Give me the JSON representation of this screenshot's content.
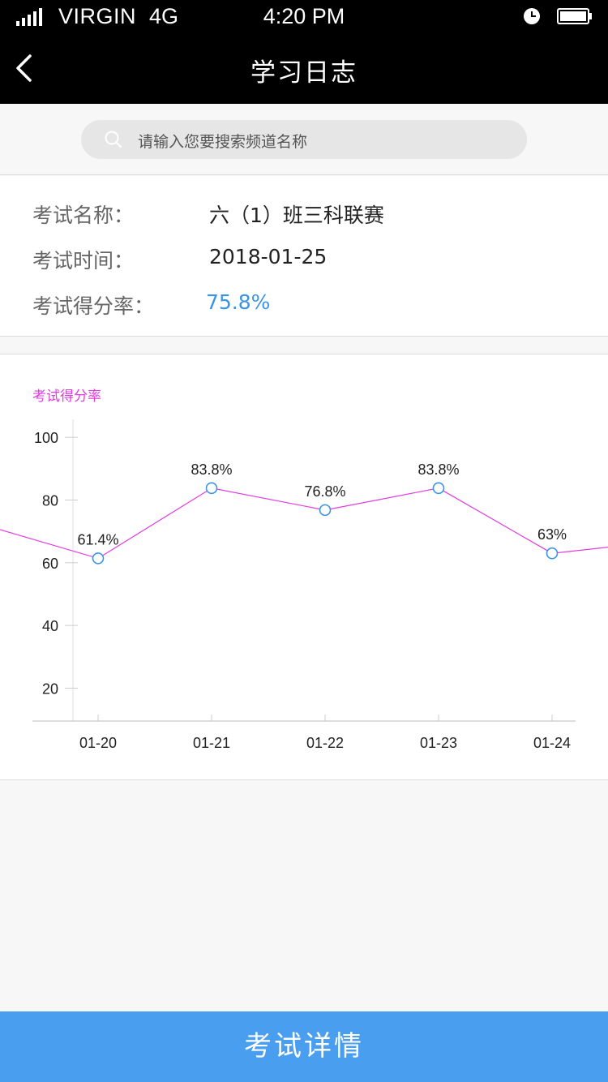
{
  "status_bar": {
    "carrier": "VIRGIN",
    "network": "4G",
    "time": "4:20 PM",
    "icons": [
      "signal-icon",
      "alarm-icon",
      "battery-icon"
    ]
  },
  "nav": {
    "title": "学习日志",
    "back_icon": "chevron-left-icon"
  },
  "search": {
    "placeholder": "请输入您要搜索频道名称",
    "icon": "search-icon"
  },
  "exam": {
    "name_label": "考试名称：",
    "name_value": "六（1）班三科联赛",
    "time_label": "考试时间：",
    "time_value": "2018-01-25",
    "rate_label": "考试得分率：",
    "rate_value": "75.8%"
  },
  "colors": {
    "accent": "#4a9ef0",
    "rate_text": "#3a94e6",
    "line": "#e23be0",
    "point": "#3a94e6"
  },
  "chart_data": {
    "type": "line",
    "title": "考试得分率",
    "categories": [
      "01-20",
      "01-21",
      "01-22",
      "01-23",
      "01-24"
    ],
    "values": [
      61.4,
      83.8,
      76.8,
      83.8,
      63
    ],
    "data_labels": [
      "61.4%",
      "83.8%",
      "76.8%",
      "83.8%",
      "63%"
    ],
    "line_continues_left_value": 72,
    "line_continues_right_value": 67,
    "y_ticks": [
      "20",
      "40",
      "60",
      "80",
      "100"
    ],
    "ylim": [
      9.5,
      106
    ],
    "grid": false,
    "xlabel": "",
    "ylabel": ""
  },
  "bottom_button": {
    "label": "考试详情"
  }
}
